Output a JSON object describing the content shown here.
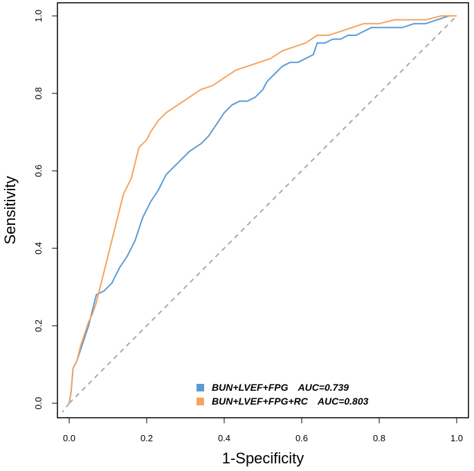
{
  "chart_data": {
    "type": "line",
    "title": "",
    "xlabel": "1-Specificity",
    "ylabel": "Sensitivity",
    "xlim": [
      0,
      1
    ],
    "ylim": [
      0,
      1
    ],
    "xticks": [
      "0.0",
      "0.2",
      "0.4",
      "0.6",
      "0.8",
      "1.0"
    ],
    "yticks": [
      "0.0",
      "0.2",
      "0.4",
      "0.6",
      "0.8",
      "1.0"
    ],
    "grid": false,
    "legend_position": "bottom-right",
    "reference_line": {
      "name": "chance",
      "style": "dashed",
      "color": "#AAAAAA",
      "points": [
        [
          0,
          0
        ],
        [
          1,
          1
        ]
      ]
    },
    "series": [
      {
        "name": "BUN+LVEF+FPG",
        "auc_label": "AUC=0.739",
        "color": "#5B9BD5",
        "points": [
          [
            0,
            0
          ],
          [
            0.005,
            0.03
          ],
          [
            0.01,
            0.09
          ],
          [
            0.02,
            0.11
          ],
          [
            0.03,
            0.14
          ],
          [
            0.04,
            0.17
          ],
          [
            0.05,
            0.2
          ],
          [
            0.06,
            0.24
          ],
          [
            0.07,
            0.28
          ],
          [
            0.09,
            0.29
          ],
          [
            0.11,
            0.31
          ],
          [
            0.13,
            0.35
          ],
          [
            0.15,
            0.38
          ],
          [
            0.17,
            0.42
          ],
          [
            0.19,
            0.48
          ],
          [
            0.21,
            0.52
          ],
          [
            0.23,
            0.55
          ],
          [
            0.25,
            0.59
          ],
          [
            0.28,
            0.62
          ],
          [
            0.31,
            0.65
          ],
          [
            0.34,
            0.67
          ],
          [
            0.36,
            0.69
          ],
          [
            0.38,
            0.72
          ],
          [
            0.4,
            0.75
          ],
          [
            0.42,
            0.77
          ],
          [
            0.44,
            0.78
          ],
          [
            0.46,
            0.78
          ],
          [
            0.48,
            0.79
          ],
          [
            0.5,
            0.81
          ],
          [
            0.51,
            0.83
          ],
          [
            0.53,
            0.85
          ],
          [
            0.55,
            0.87
          ],
          [
            0.57,
            0.88
          ],
          [
            0.59,
            0.88
          ],
          [
            0.61,
            0.89
          ],
          [
            0.63,
            0.9
          ],
          [
            0.64,
            0.93
          ],
          [
            0.66,
            0.93
          ],
          [
            0.68,
            0.94
          ],
          [
            0.7,
            0.94
          ],
          [
            0.72,
            0.95
          ],
          [
            0.74,
            0.95
          ],
          [
            0.76,
            0.96
          ],
          [
            0.78,
            0.97
          ],
          [
            0.8,
            0.97
          ],
          [
            0.83,
            0.97
          ],
          [
            0.86,
            0.97
          ],
          [
            0.89,
            0.98
          ],
          [
            0.92,
            0.98
          ],
          [
            0.95,
            0.99
          ],
          [
            0.98,
            1.0
          ],
          [
            1.0,
            1.0
          ]
        ]
      },
      {
        "name": "BUN+LVEF+FPG+RC",
        "auc_label": "AUC=0.803",
        "color": "#F4A460",
        "points": [
          [
            0,
            0
          ],
          [
            0.005,
            0.03
          ],
          [
            0.01,
            0.09
          ],
          [
            0.02,
            0.11
          ],
          [
            0.03,
            0.15
          ],
          [
            0.04,
            0.18
          ],
          [
            0.05,
            0.21
          ],
          [
            0.06,
            0.23
          ],
          [
            0.07,
            0.26
          ],
          [
            0.08,
            0.3
          ],
          [
            0.09,
            0.34
          ],
          [
            0.1,
            0.38
          ],
          [
            0.11,
            0.42
          ],
          [
            0.12,
            0.46
          ],
          [
            0.13,
            0.5
          ],
          [
            0.14,
            0.54
          ],
          [
            0.16,
            0.58
          ],
          [
            0.17,
            0.62
          ],
          [
            0.18,
            0.66
          ],
          [
            0.2,
            0.68
          ],
          [
            0.21,
            0.7
          ],
          [
            0.23,
            0.73
          ],
          [
            0.25,
            0.75
          ],
          [
            0.28,
            0.77
          ],
          [
            0.31,
            0.79
          ],
          [
            0.34,
            0.81
          ],
          [
            0.37,
            0.82
          ],
          [
            0.4,
            0.84
          ],
          [
            0.43,
            0.86
          ],
          [
            0.46,
            0.87
          ],
          [
            0.49,
            0.88
          ],
          [
            0.52,
            0.89
          ],
          [
            0.55,
            0.91
          ],
          [
            0.58,
            0.92
          ],
          [
            0.61,
            0.93
          ],
          [
            0.64,
            0.95
          ],
          [
            0.67,
            0.95
          ],
          [
            0.7,
            0.96
          ],
          [
            0.73,
            0.97
          ],
          [
            0.76,
            0.98
          ],
          [
            0.8,
            0.98
          ],
          [
            0.84,
            0.99
          ],
          [
            0.88,
            0.99
          ],
          [
            0.92,
            0.99
          ],
          [
            0.96,
            1.0
          ],
          [
            1.0,
            1.0
          ]
        ]
      }
    ]
  }
}
